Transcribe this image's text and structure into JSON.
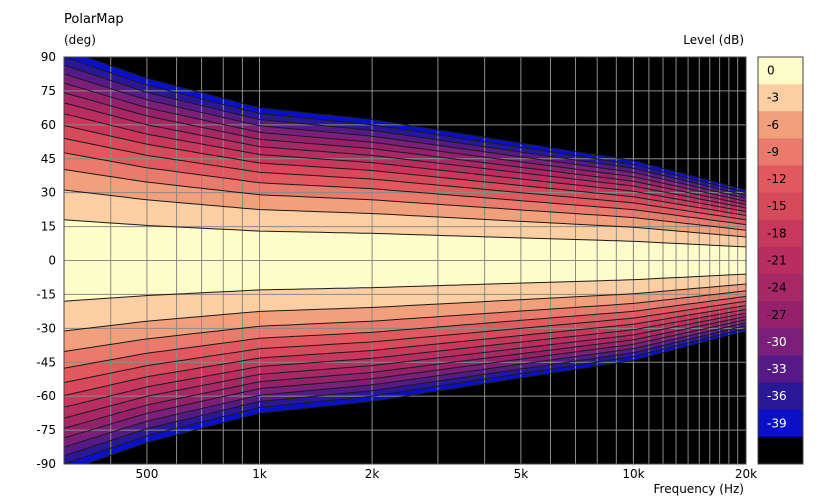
{
  "chart_data": {
    "type": "heatmap",
    "title": "PolarMap",
    "ylabel": "(deg)",
    "xlabel": "Frequency  (Hz)",
    "colorbar_label": "Level  (dB)",
    "x_scale": "log",
    "xlim": [
      300,
      20000
    ],
    "ylim": [
      -90,
      90
    ],
    "x_tick_values": [
      500,
      1000,
      2000,
      5000,
      10000,
      20000
    ],
    "x_tick_labels": [
      "500",
      "1k",
      "2k",
      "5k",
      "10k",
      "20k"
    ],
    "y_ticks": [
      90,
      75,
      60,
      45,
      30,
      15,
      0,
      -15,
      -30,
      -45,
      -60,
      -75,
      -90
    ],
    "grid": true,
    "legend_position": "right",
    "contour_levels": [
      0,
      -3,
      -6,
      -9,
      -12,
      -15,
      -18,
      -21,
      -24,
      -27,
      -30,
      -33,
      -36,
      -39
    ],
    "colorbar": [
      {
        "label": "0",
        "color": "#fdfdc9"
      },
      {
        "label": "-3",
        "color": "#fbcfa3"
      },
      {
        "label": "-6",
        "color": "#f2a07c"
      },
      {
        "label": "-9",
        "color": "#ea7a6c"
      },
      {
        "label": "-12",
        "color": "#e2585f"
      },
      {
        "label": "-15",
        "color": "#d64a5c"
      },
      {
        "label": "-18",
        "color": "#c8385c"
      },
      {
        "label": "-21",
        "color": "#b82e60"
      },
      {
        "label": "-24",
        "color": "#a82866"
      },
      {
        "label": "-27",
        "color": "#95216b"
      },
      {
        "label": "-30",
        "color": "#7a1f7a"
      },
      {
        "label": "-33",
        "color": "#561a86"
      },
      {
        "label": "-36",
        "color": "#2a1796"
      },
      {
        "label": "-39",
        "color": "#0a10c8"
      },
      {
        "label": "",
        "color": "#000000"
      }
    ],
    "beamwidth_deg_at_minus6dB": {
      "freq_hz": [
        300,
        500,
        1000,
        2000,
        5000,
        10000,
        20000
      ],
      "angle_deg": [
        36,
        31,
        26,
        24,
        20,
        17,
        12
      ]
    }
  }
}
